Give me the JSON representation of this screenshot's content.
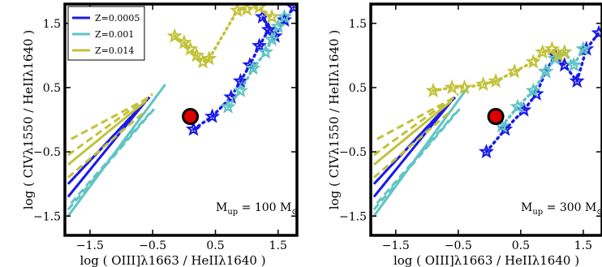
{
  "chart_data": [
    {
      "type": "line",
      "xlabel": "log ( OIII]λ1663 / HeIIλ1640 )",
      "ylabel": "log ( CIVλ1550 / HeIIλ1640 )",
      "xlim": [
        -1.9,
        1.8
      ],
      "ylim": [
        -1.8,
        1.8
      ],
      "xticks": [
        -1.5,
        -0.5,
        0.5,
        1.5
      ],
      "xtick_labels": [
        "−1.5",
        "−0.5",
        "0.5",
        "1.5"
      ],
      "yticks": [
        -1.5,
        -0.5,
        0.5,
        1.5
      ],
      "ytick_labels": [
        "−1.5",
        "−0.5",
        "0.5",
        "1.5"
      ],
      "annotation": "M",
      "annotation_sub": "up",
      "annotation_value": " = 100 M",
      "annotation_sun": "⊙",
      "legend": {
        "position": "top-left",
        "entries": [
          {
            "label": "Z=0.0005",
            "color": "#1a1ae6"
          },
          {
            "label": "Z=0.001",
            "color": "#5fc4c4"
          },
          {
            "label": "Z=0.014",
            "color": "#c2c23a"
          }
        ]
      },
      "highlight_point": {
        "x": 0.1,
        "y": 0.05,
        "color": "#dd0000"
      },
      "series": [
        {
          "color": "#1a1ae6",
          "model_lines": [
            [
              [
                -1.85,
                -1.2
              ],
              [
                -0.6,
                0.3
              ]
            ],
            [
              [
                -1.85,
                -1.0
              ],
              [
                -0.55,
                0.35
              ]
            ],
            [
              [
                -1.8,
                -0.95
              ],
              [
                -0.65,
                0.25
              ]
            ]
          ],
          "stars": [
            [
              0.15,
              -0.15
            ],
            [
              0.45,
              0.05
            ],
            [
              0.75,
              0.35
            ],
            [
              0.9,
              0.6
            ],
            [
              1.05,
              0.85
            ],
            [
              1.2,
              1.15
            ],
            [
              1.35,
              1.4
            ],
            [
              1.25,
              1.6
            ],
            [
              1.45,
              1.3
            ],
            [
              1.6,
              1.55
            ],
            [
              1.75,
              1.75
            ]
          ]
        },
        {
          "color": "#5fc4c4",
          "model_lines": [
            [
              [
                -1.85,
                -1.5
              ],
              [
                -0.3,
                0.55
              ]
            ],
            [
              [
                -1.85,
                -1.4
              ],
              [
                -0.45,
                0.2
              ]
            ],
            [
              [
                -1.8,
                -1.3
              ],
              [
                -0.55,
                0.1
              ]
            ]
          ],
          "stars": [
            [
              0.7,
              0.2
            ],
            [
              0.9,
              0.45
            ],
            [
              1.1,
              0.8
            ],
            [
              1.3,
              1.05
            ],
            [
              1.4,
              1.25
            ],
            [
              1.5,
              1.45
            ],
            [
              1.6,
              1.6
            ]
          ]
        },
        {
          "color": "#c2c23a",
          "model_lines": [
            [
              [
                -1.85,
                -0.7
              ],
              [
                -0.6,
                0.3
              ]
            ],
            [
              [
                -1.85,
                -0.55
              ],
              [
                -0.5,
                0.4
              ]
            ],
            [
              [
                -1.85,
                -0.9
              ],
              [
                -0.6,
                0.15
              ]
            ],
            [
              [
                -1.8,
                -0.3
              ],
              [
                -0.55,
                0.35
              ]
            ]
          ],
          "stars": [
            [
              -0.15,
              1.3
            ],
            [
              0.0,
              1.2
            ],
            [
              0.1,
              1.1
            ],
            [
              0.2,
              1.0
            ],
            [
              0.3,
              0.9
            ],
            [
              0.4,
              0.95
            ],
            [
              0.85,
              1.7
            ],
            [
              1.0,
              1.72
            ],
            [
              1.2,
              1.75
            ],
            [
              1.4,
              1.6
            ]
          ]
        }
      ]
    },
    {
      "type": "line",
      "xlabel": "log ( OIII]λ1663 / HeIIλ1640 )",
      "ylabel": "log ( CIVλ1550 / HeIIλ1640 )",
      "xlim": [
        -1.9,
        1.8
      ],
      "ylim": [
        -1.8,
        1.8
      ],
      "xticks": [
        -1.5,
        -0.5,
        0.5,
        1.5
      ],
      "xtick_labels": [
        "−1.5",
        "−0.5",
        "0.5",
        "1.5"
      ],
      "yticks": [
        -1.5,
        -0.5,
        0.5,
        1.5
      ],
      "ytick_labels": [
        "−1.5",
        "−0.5",
        "0.5",
        "1.5"
      ],
      "annotation": "M",
      "annotation_sub": "up",
      "annotation_value": " = 300 M",
      "annotation_sun": "⊙",
      "highlight_point": {
        "x": 0.1,
        "y": 0.05,
        "color": "#dd0000"
      },
      "series": [
        {
          "color": "#1a1ae6",
          "model_lines": [
            [
              [
                -1.85,
                -1.2
              ],
              [
                -0.6,
                0.3
              ]
            ],
            [
              [
                -1.85,
                -1.0
              ],
              [
                -0.55,
                0.35
              ]
            ],
            [
              [
                -1.8,
                -0.95
              ],
              [
                -0.65,
                0.25
              ]
            ]
          ],
          "stars": [
            [
              -0.05,
              -0.5
            ],
            [
              0.25,
              -0.15
            ],
            [
              0.55,
              0.15
            ],
            [
              0.75,
              0.4
            ],
            [
              0.9,
              0.75
            ],
            [
              1.05,
              1.0
            ],
            [
              1.2,
              0.85
            ],
            [
              1.4,
              0.6
            ],
            [
              1.55,
              1.1
            ],
            [
              1.75,
              1.35
            ]
          ]
        },
        {
          "color": "#5fc4c4",
          "model_lines": [
            [
              [
                -1.85,
                -1.5
              ],
              [
                -0.35,
                0.5
              ]
            ],
            [
              [
                -1.85,
                -1.4
              ],
              [
                -0.45,
                0.2
              ]
            ],
            [
              [
                -1.8,
                -1.3
              ],
              [
                -0.55,
                0.1
              ]
            ]
          ],
          "stars": [
            [
              0.2,
              -0.1
            ],
            [
              0.45,
              0.2
            ],
            [
              0.7,
              0.45
            ],
            [
              0.9,
              0.75
            ],
            [
              1.05,
              0.95
            ],
            [
              1.2,
              1.05
            ],
            [
              1.35,
              0.85
            ],
            [
              1.5,
              1.1
            ]
          ]
        },
        {
          "color": "#c2c23a",
          "model_lines": [
            [
              [
                -1.85,
                -0.7
              ],
              [
                -0.6,
                0.3
              ]
            ],
            [
              [
                -1.85,
                -0.55
              ],
              [
                -0.5,
                0.4
              ]
            ],
            [
              [
                -1.85,
                -0.9
              ],
              [
                -0.6,
                0.15
              ]
            ],
            [
              [
                -1.8,
                -0.3
              ],
              [
                -0.55,
                0.35
              ]
            ]
          ],
          "stars": [
            [
              -0.9,
              0.45
            ],
            [
              -0.6,
              0.5
            ],
            [
              -0.4,
              0.5
            ],
            [
              -0.1,
              0.55
            ],
            [
              0.1,
              0.6
            ],
            [
              0.4,
              0.75
            ],
            [
              0.7,
              0.9
            ],
            [
              0.85,
              1.05
            ],
            [
              1.0,
              1.1
            ],
            [
              1.1,
              1.0
            ],
            [
              1.2,
              1.05
            ]
          ]
        }
      ]
    }
  ]
}
